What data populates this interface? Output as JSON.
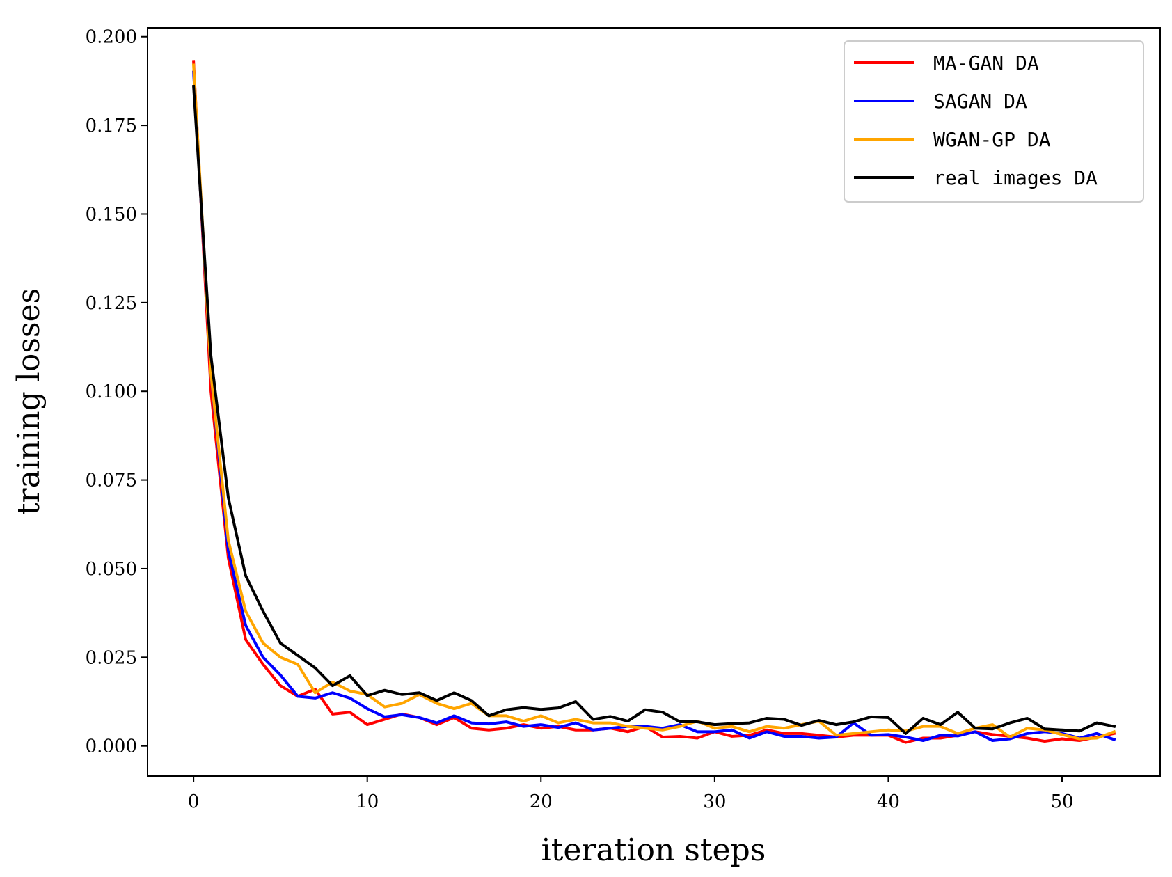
{
  "chart_data": {
    "type": "line",
    "title": "",
    "xlabel": "iteration steps",
    "ylabel": "training losses",
    "xlim": [
      -2.65,
      55.65
    ],
    "ylim": [
      -0.0085,
      0.2025
    ],
    "xticks": [
      0,
      10,
      20,
      30,
      40,
      50
    ],
    "xtick_labels": [
      "0",
      "10",
      "20",
      "30",
      "40",
      "50"
    ],
    "yticks": [
      0.0,
      0.025,
      0.05,
      0.075,
      0.1,
      0.125,
      0.15,
      0.175,
      0.2
    ],
    "ytick_labels": [
      "0.000",
      "0.025",
      "0.050",
      "0.075",
      "0.100",
      "0.125",
      "0.150",
      "0.175",
      "0.200"
    ],
    "grid": false,
    "legend_position": "top-right",
    "series": [
      {
        "name": "MA-GAN DA",
        "color": "#ff0000",
        "values": [
          0.193,
          0.1,
          0.053,
          0.03,
          0.023,
          0.017,
          0.014,
          0.016,
          0.009,
          0.0095,
          0.006,
          0.0075,
          0.009,
          0.008,
          0.006,
          0.008,
          0.005,
          0.0045,
          0.005,
          0.006,
          0.005,
          0.0055,
          0.0045,
          0.0045,
          0.005,
          0.004,
          0.0055,
          0.0025,
          0.0027,
          0.0022,
          0.004,
          0.0027,
          0.003,
          0.0045,
          0.0035,
          0.0035,
          0.003,
          0.0025,
          0.003,
          0.003,
          0.003,
          0.001,
          0.0022,
          0.0022,
          0.003,
          0.004,
          0.0032,
          0.0027,
          0.0022,
          0.0013,
          0.002,
          0.0015,
          0.0025,
          0.0035
        ]
      },
      {
        "name": "SAGAN DA",
        "color": "#0000ff",
        "values": [
          0.19,
          0.105,
          0.055,
          0.034,
          0.025,
          0.02,
          0.014,
          0.0135,
          0.015,
          0.0135,
          0.0105,
          0.0082,
          0.0088,
          0.008,
          0.0065,
          0.0085,
          0.0065,
          0.0062,
          0.0068,
          0.0055,
          0.006,
          0.0052,
          0.0065,
          0.0045,
          0.005,
          0.0055,
          0.0055,
          0.005,
          0.006,
          0.004,
          0.004,
          0.0045,
          0.0022,
          0.004,
          0.0027,
          0.0027,
          0.0022,
          0.0025,
          0.0065,
          0.003,
          0.0032,
          0.0025,
          0.0015,
          0.003,
          0.0028,
          0.004,
          0.0015,
          0.002,
          0.0035,
          0.004,
          0.0035,
          0.0022,
          0.0035,
          0.0018
        ]
      },
      {
        "name": "WGAN-GP DA",
        "color": "#ffa500",
        "values": [
          0.192,
          0.105,
          0.058,
          0.038,
          0.029,
          0.025,
          0.023,
          0.015,
          0.018,
          0.0155,
          0.0145,
          0.011,
          0.012,
          0.0145,
          0.012,
          0.0105,
          0.012,
          0.0085,
          0.0085,
          0.007,
          0.0085,
          0.0065,
          0.0075,
          0.0065,
          0.0065,
          0.0055,
          0.005,
          0.0045,
          0.0055,
          0.007,
          0.005,
          0.0055,
          0.004,
          0.0055,
          0.005,
          0.006,
          0.007,
          0.003,
          0.0035,
          0.004,
          0.0045,
          0.0042,
          0.0055,
          0.0055,
          0.0035,
          0.005,
          0.006,
          0.0025,
          0.005,
          0.0045,
          0.0032,
          0.002,
          0.0022,
          0.004
        ]
      },
      {
        "name": "real images DA",
        "color": "#000000",
        "values": [
          0.186,
          0.11,
          0.07,
          0.048,
          0.038,
          0.029,
          0.0255,
          0.022,
          0.017,
          0.0198,
          0.0142,
          0.0157,
          0.0145,
          0.015,
          0.0128,
          0.015,
          0.0128,
          0.0085,
          0.0102,
          0.0108,
          0.0103,
          0.0107,
          0.0125,
          0.0075,
          0.0083,
          0.007,
          0.0102,
          0.0095,
          0.0068,
          0.0068,
          0.006,
          0.0063,
          0.0065,
          0.0078,
          0.0075,
          0.0058,
          0.0072,
          0.006,
          0.0068,
          0.0082,
          0.008,
          0.0035,
          0.0078,
          0.006,
          0.0095,
          0.005,
          0.0048,
          0.0065,
          0.0078,
          0.0048,
          0.0045,
          0.0042,
          0.0065,
          0.0055
        ]
      }
    ]
  }
}
